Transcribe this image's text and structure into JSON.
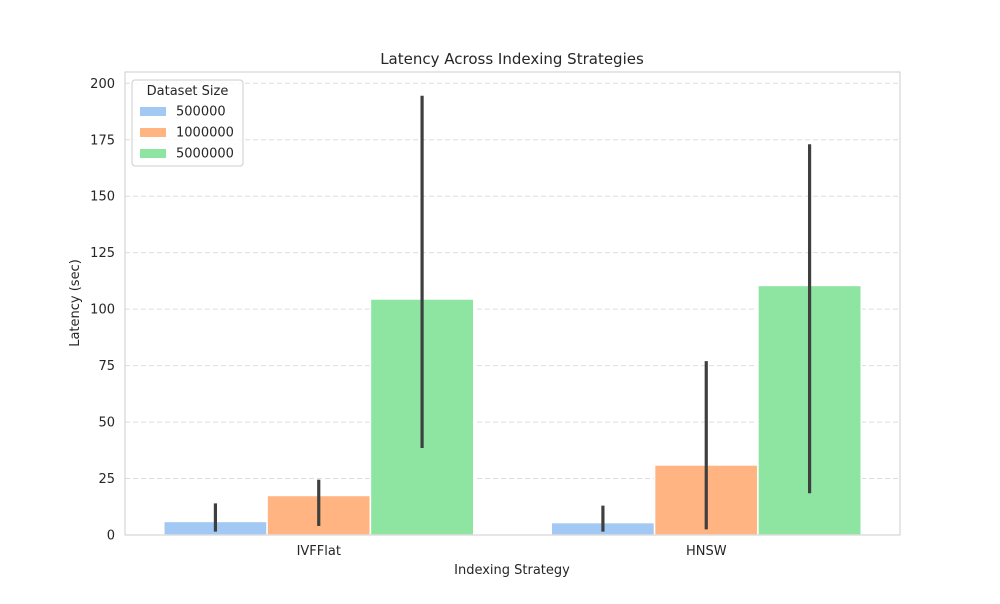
{
  "chart_data": {
    "type": "bar",
    "title": "Latency Across Indexing Strategies",
    "xlabel": "Indexing Strategy",
    "ylabel": "Latency (sec)",
    "categories": [
      "IVFFlat",
      "HNSW"
    ],
    "ylim": [
      0,
      205
    ],
    "yticks": [
      0,
      25,
      50,
      75,
      100,
      125,
      150,
      175,
      200
    ],
    "grid": {
      "y": true,
      "style": "dashed"
    },
    "legend": {
      "title": "Dataset Size",
      "position": "top-left"
    },
    "series": [
      {
        "name": "500000",
        "color": "#a1c9f4",
        "values": [
          6,
          5.5
        ],
        "error_low": [
          1.5,
          1.5
        ],
        "error_high": [
          14,
          13
        ]
      },
      {
        "name": "1000000",
        "color": "#ffb482",
        "values": [
          17.5,
          31
        ],
        "error_low": [
          4,
          2.5
        ],
        "error_high": [
          24.5,
          77
        ]
      },
      {
        "name": "5000000",
        "color": "#8de5a1",
        "values": [
          104.5,
          110.5
        ],
        "error_low": [
          38.5,
          18.5
        ],
        "error_high": [
          194.5,
          173
        ]
      }
    ]
  }
}
